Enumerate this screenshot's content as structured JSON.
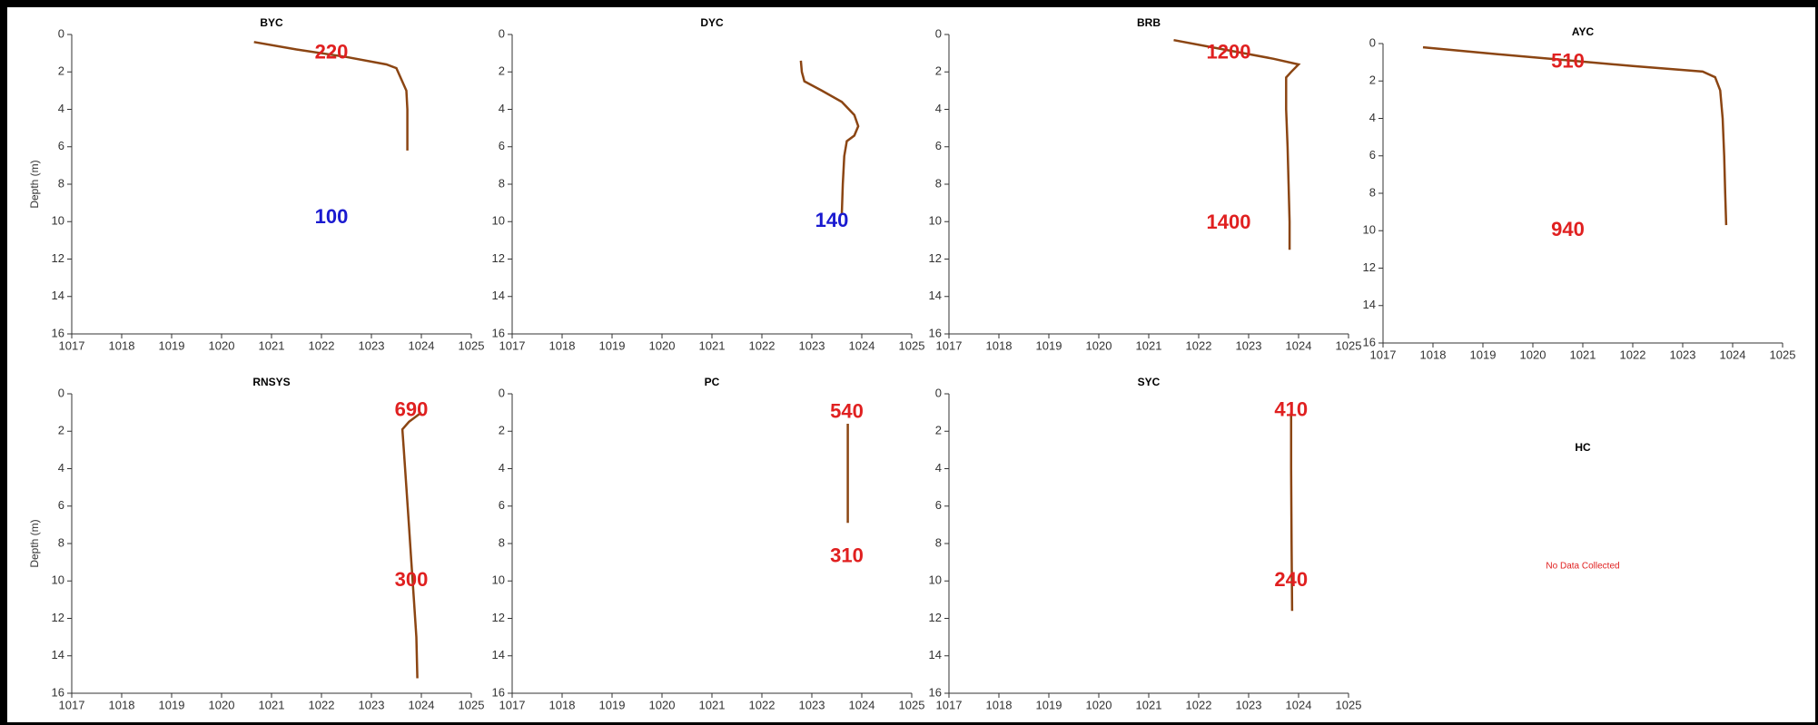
{
  "chart_data": [
    {
      "type": "line",
      "title": "BYC",
      "ylabel": "Depth (m)",
      "color": "#8b4513",
      "xlim": [
        1017,
        1025
      ],
      "xticks": [
        1017,
        1018,
        1019,
        1020,
        1021,
        1022,
        1023,
        1024,
        1025
      ],
      "ylim": [
        0,
        16
      ],
      "yticks": [
        0,
        2,
        4,
        6,
        8,
        10,
        12,
        14,
        16
      ],
      "y_inverted": true,
      "x": [
        1020.65,
        1021.5,
        1022.5,
        1023.3,
        1023.5,
        1023.6,
        1023.7,
        1023.72,
        1023.72,
        1023.72
      ],
      "values": [
        0.4,
        0.8,
        1.2,
        1.6,
        1.8,
        2.4,
        3.0,
        4,
        5,
        6.2
      ],
      "annotations": [
        {
          "text": "220",
          "color": "#e02020",
          "x": 1022.2,
          "y": 1.0
        },
        {
          "text": "100",
          "color": "#1a1ad0",
          "x": 1022.2,
          "y": 9.8
        }
      ]
    },
    {
      "type": "line",
      "title": "DYC",
      "color": "#8b4513",
      "xlim": [
        1017,
        1025
      ],
      "xticks": [
        1017,
        1018,
        1019,
        1020,
        1021,
        1022,
        1023,
        1024,
        1025
      ],
      "ylim": [
        0,
        16
      ],
      "yticks": [
        0,
        2,
        4,
        6,
        8,
        10,
        12,
        14,
        16
      ],
      "y_inverted": true,
      "x": [
        1022.78,
        1022.8,
        1022.85,
        1023.2,
        1023.6,
        1023.85,
        1023.93,
        1023.85,
        1023.7,
        1023.65,
        1023.62,
        1023.6
      ],
      "values": [
        1.4,
        2.0,
        2.5,
        3.0,
        3.6,
        4.3,
        4.9,
        5.4,
        5.7,
        6.5,
        8,
        9.6
      ],
      "annotations": [
        {
          "text": "140",
          "color": "#1a1ad0",
          "x": 1023.4,
          "y": 10.0
        }
      ]
    },
    {
      "type": "line",
      "title": "BRB",
      "color": "#8b4513",
      "xlim": [
        1017,
        1025
      ],
      "xticks": [
        1017,
        1018,
        1019,
        1020,
        1021,
        1022,
        1023,
        1024,
        1025
      ],
      "ylim": [
        0,
        16
      ],
      "yticks": [
        0,
        2,
        4,
        6,
        8,
        10,
        12,
        14,
        16
      ],
      "y_inverted": true,
      "x": [
        1021.5,
        1022.5,
        1023.5,
        1024.0,
        1023.85,
        1023.75,
        1023.75,
        1023.78,
        1023.8,
        1023.82,
        1023.82
      ],
      "values": [
        0.3,
        0.8,
        1.3,
        1.6,
        2.0,
        2.3,
        4,
        6,
        8,
        10,
        11.5
      ],
      "annotations": [
        {
          "text": "1200",
          "color": "#e02020",
          "x": 1022.6,
          "y": 1.0
        },
        {
          "text": "1400",
          "color": "#e02020",
          "x": 1022.6,
          "y": 10.1
        }
      ]
    },
    {
      "type": "line",
      "title": "AYC",
      "color": "#8b4513",
      "xlim": [
        1017,
        1025
      ],
      "xticks": [
        1017,
        1018,
        1019,
        1020,
        1021,
        1022,
        1023,
        1024,
        1025
      ],
      "ylim": [
        0,
        16
      ],
      "yticks": [
        0,
        2,
        4,
        6,
        8,
        10,
        12,
        14,
        16
      ],
      "y_inverted": true,
      "x": [
        1017.8,
        1019,
        1020.5,
        1022,
        1023.4,
        1023.65,
        1023.75,
        1023.8,
        1023.83,
        1023.85,
        1023.87
      ],
      "values": [
        0.2,
        0.5,
        0.85,
        1.2,
        1.5,
        1.8,
        2.5,
        4,
        6,
        8,
        9.7
      ],
      "annotations": [
        {
          "text": "510",
          "color": "#e02020",
          "x": 1020.7,
          "y": 1.0
        },
        {
          "text": "940",
          "color": "#e02020",
          "x": 1020.7,
          "y": 10.0
        }
      ]
    },
    {
      "type": "line",
      "title": "RNSYS",
      "ylabel": "Depth (m)",
      "color": "#8b4513",
      "xlim": [
        1017,
        1025
      ],
      "xticks": [
        1017,
        1018,
        1019,
        1020,
        1021,
        1022,
        1023,
        1024,
        1025
      ],
      "ylim": [
        0,
        16
      ],
      "yticks": [
        0,
        2,
        4,
        6,
        8,
        10,
        12,
        14,
        16
      ],
      "y_inverted": true,
      "x": [
        1024.0,
        1023.75,
        1023.62,
        1023.65,
        1023.7,
        1023.75,
        1023.8,
        1023.85,
        1023.9,
        1023.92
      ],
      "values": [
        1.0,
        1.5,
        1.9,
        3,
        5,
        7,
        9,
        11,
        13,
        15.2
      ],
      "annotations": [
        {
          "text": "690",
          "color": "#e02020",
          "x": 1023.8,
          "y": 0.9
        },
        {
          "text": "300",
          "color": "#e02020",
          "x": 1023.8,
          "y": 10.0
        }
      ]
    },
    {
      "type": "line",
      "title": "PC",
      "color": "#8b4513",
      "xlim": [
        1017,
        1025
      ],
      "xticks": [
        1017,
        1018,
        1019,
        1020,
        1021,
        1022,
        1023,
        1024,
        1025
      ],
      "ylim": [
        0,
        16
      ],
      "yticks": [
        0,
        2,
        4,
        6,
        8,
        10,
        12,
        14,
        16
      ],
      "y_inverted": true,
      "x": [
        1023.72,
        1023.72,
        1023.72
      ],
      "values": [
        1.6,
        4,
        6.9
      ],
      "annotations": [
        {
          "text": "540",
          "color": "#e02020",
          "x": 1023.7,
          "y": 1.0
        },
        {
          "text": "310",
          "color": "#e02020",
          "x": 1023.7,
          "y": 8.7
        }
      ]
    },
    {
      "type": "line",
      "title": "SYC",
      "color": "#8b4513",
      "xlim": [
        1017,
        1025
      ],
      "xticks": [
        1017,
        1018,
        1019,
        1020,
        1021,
        1022,
        1023,
        1024,
        1025
      ],
      "ylim": [
        0,
        16
      ],
      "yticks": [
        0,
        2,
        4,
        6,
        8,
        10,
        12,
        14,
        16
      ],
      "y_inverted": true,
      "x": [
        1023.85,
        1023.85,
        1023.86,
        1023.87
      ],
      "values": [
        1.0,
        4,
        8,
        11.6
      ],
      "annotations": [
        {
          "text": "410",
          "color": "#e02020",
          "x": 1023.85,
          "y": 0.9
        },
        {
          "text": "240",
          "color": "#e02020",
          "x": 1023.85,
          "y": 10.0
        }
      ]
    },
    {
      "type": "none",
      "title": "HC",
      "note": "No Data Collected",
      "note_color": "#e02020"
    }
  ]
}
